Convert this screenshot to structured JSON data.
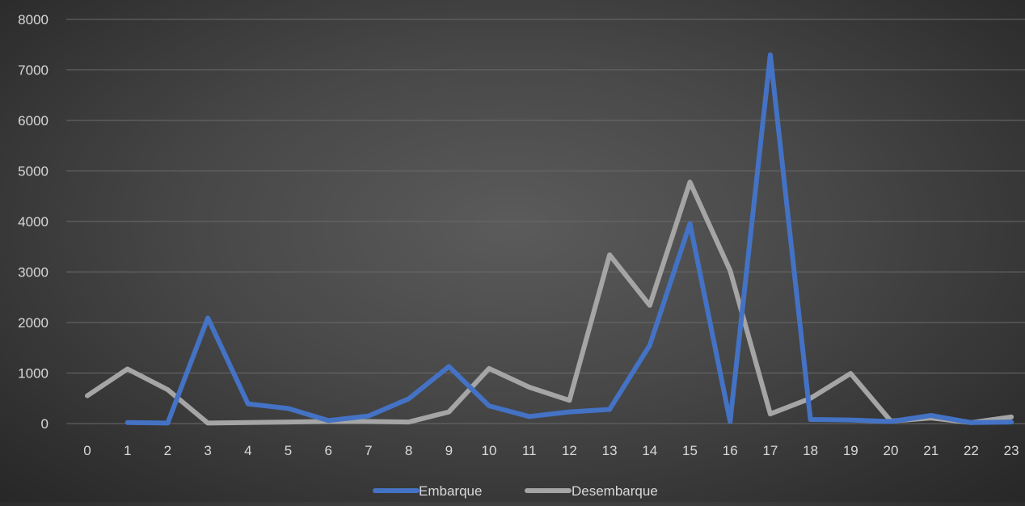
{
  "chart_data": {
    "type": "line",
    "title": "",
    "xlabel": "",
    "ylabel": "",
    "categories": [
      "0",
      "1",
      "2",
      "3",
      "4",
      "5",
      "6",
      "7",
      "8",
      "9",
      "10",
      "11",
      "12",
      "13",
      "14",
      "15",
      "16",
      "17",
      "18",
      "19",
      "20",
      "21",
      "22",
      "23"
    ],
    "ylim": [
      0,
      8000
    ],
    "yticks": [
      0,
      1000,
      2000,
      3000,
      4000,
      5000,
      6000,
      7000,
      8000
    ],
    "grid": true,
    "legend_position": "bottom",
    "series": [
      {
        "name": "Embarque",
        "color": "#4472c4",
        "values": [
          null,
          20,
          10,
          2090,
          390,
          300,
          60,
          150,
          490,
          1130,
          350,
          140,
          230,
          280,
          1550,
          3960,
          40,
          7300,
          80,
          70,
          40,
          160,
          20,
          30
        ]
      },
      {
        "name": "Desembarque",
        "color": "#a5a5a5",
        "values": [
          550,
          1080,
          670,
          10,
          20,
          30,
          40,
          40,
          30,
          230,
          1090,
          720,
          460,
          3340,
          2340,
          4780,
          3030,
          190,
          500,
          990,
          50,
          110,
          20,
          130
        ]
      }
    ]
  }
}
